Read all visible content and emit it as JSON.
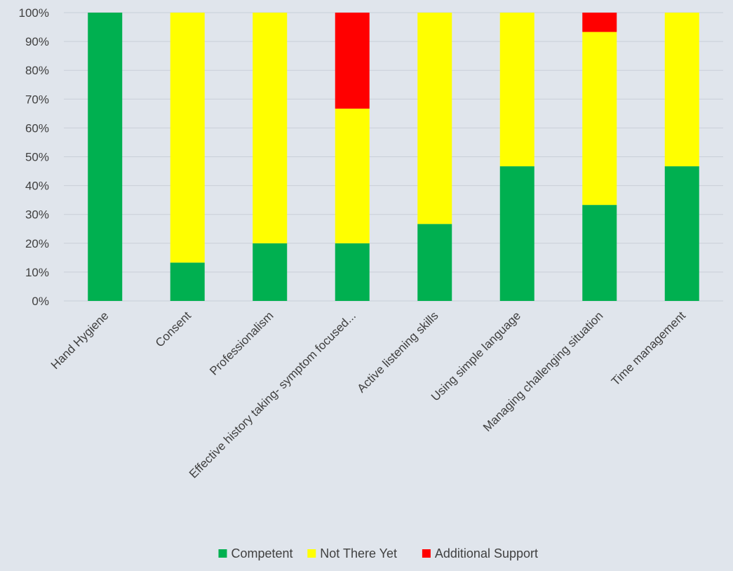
{
  "chart_data": {
    "type": "bar",
    "stacked": true,
    "percent_stacked": true,
    "categories": [
      "Hand Hygiene",
      "Consent",
      "Professionalism",
      "Effective history taking- symptom focused...",
      "Active listening skills",
      "Using simple language",
      "Managing challenging situation",
      "Time management"
    ],
    "series": [
      {
        "name": "Competent",
        "color": "#00b050",
        "values": [
          100,
          13.3,
          20,
          20,
          26.7,
          46.7,
          33.3,
          46.7
        ]
      },
      {
        "name": "Not There Yet",
        "color": "#ffff00",
        "values": [
          0,
          86.7,
          80,
          46.7,
          73.3,
          53.3,
          60,
          53.3
        ]
      },
      {
        "name": "Additional Support",
        "color": "#ff0000",
        "values": [
          0,
          0,
          0,
          33.3,
          0,
          0,
          6.7,
          0
        ]
      }
    ],
    "y_ticks": [
      "0%",
      "10%",
      "20%",
      "30%",
      "40%",
      "50%",
      "60%",
      "70%",
      "80%",
      "90%",
      "100%"
    ],
    "ylim": [
      0,
      100
    ],
    "grid": true,
    "legend_position": "bottom",
    "title": "",
    "xlabel": "",
    "ylabel": ""
  }
}
